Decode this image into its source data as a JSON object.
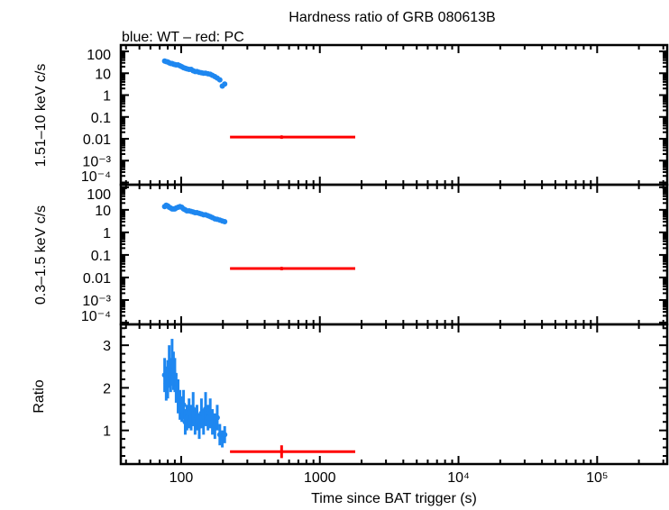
{
  "chart_data": {
    "type": "scatter",
    "title": "Hardness ratio of GRB 080613B",
    "subtitle": "blue: WT – red: PC",
    "xlabel": "Time since BAT trigger (s)",
    "x_scale": "log",
    "xlim": [
      36.7,
      320000
    ],
    "x_ticks": [
      {
        "v": 100,
        "label": "100"
      },
      {
        "v": 1000,
        "label": "1000"
      },
      {
        "v": 10000,
        "label": "10⁴"
      },
      {
        "v": 100000,
        "label": "10⁵"
      }
    ],
    "colors": {
      "WT": "#1e87f0",
      "PC": "#ff0000"
    },
    "panels": [
      {
        "id": "hard",
        "ylabel": "1.51–10 keV c/s",
        "y_scale": "log",
        "ylim": [
          7.9e-05,
          195
        ],
        "y_ticks": [
          {
            "v": 100,
            "label": "100"
          },
          {
            "v": 10,
            "label": "10"
          },
          {
            "v": 1,
            "label": "1"
          },
          {
            "v": 0.1,
            "label": "0.1"
          },
          {
            "v": 0.01,
            "label": "0.01"
          },
          {
            "v": 0.001,
            "label": "10⁻³"
          },
          {
            "v": 0.0001,
            "label": "10⁻⁴"
          }
        ],
        "series": [
          {
            "mode": "WT",
            "x": [
              76,
              78,
              80,
              82,
              84,
              86,
              88,
              90,
              92,
              95,
              98,
              101,
              104,
              107,
              110,
              114,
              118,
              122,
              126,
              130,
              135,
              140,
              145,
              150,
              156,
              162,
              168,
              175,
              182,
              190,
              198,
              206
            ],
            "y": [
              36,
              34,
              33,
              30,
              28,
              28,
              26,
              25,
              24,
              24,
              22,
              20,
              18,
              17,
              16,
              15,
              15,
              13,
              12,
              12,
              11,
              10.5,
              10,
              10,
              9.5,
              9,
              8,
              7,
              6,
              5,
              2.6,
              3.2
            ]
          },
          {
            "mode": "PC",
            "x": [
              530
            ],
            "xerr_lo": [
              225
            ],
            "xerr_hi": [
              1800
            ],
            "y": [
              0.012
            ],
            "yerr": [
              0.002
            ]
          }
        ]
      },
      {
        "id": "soft",
        "ylabel": "0.3–1.5 keV c/s",
        "y_scale": "log",
        "ylim": [
          8.3e-05,
          130
        ],
        "y_ticks": [
          {
            "v": 100,
            "label": "100"
          },
          {
            "v": 10,
            "label": "10"
          },
          {
            "v": 1,
            "label": "1"
          },
          {
            "v": 0.1,
            "label": "0.1"
          },
          {
            "v": 0.01,
            "label": "0.01"
          },
          {
            "v": 0.001,
            "label": "10⁻³"
          },
          {
            "v": 0.0001,
            "label": "10⁻⁴"
          }
        ],
        "series": [
          {
            "mode": "WT",
            "x": [
              76,
              78,
              80,
              82,
              84,
              86,
              88,
              90,
              92,
              95,
              98,
              101,
              104,
              107,
              110,
              114,
              118,
              122,
              126,
              130,
              135,
              140,
              145,
              150,
              156,
              162,
              168,
              175,
              182,
              190,
              198,
              206
            ],
            "y": [
              14,
              16,
              15,
              13,
              12,
              11,
              11,
              11,
              12,
              13,
              14,
              13,
              11,
              10,
              9,
              9,
              8.5,
              8,
              7.5,
              7.5,
              7,
              6.5,
              6,
              6,
              5.5,
              5,
              4.5,
              4,
              3.8,
              3.5,
              3.2,
              3.0
            ]
          },
          {
            "mode": "PC",
            "x": [
              530
            ],
            "xerr_lo": [
              225
            ],
            "xerr_hi": [
              1800
            ],
            "y": [
              0.025
            ],
            "yerr": [
              0.004
            ]
          }
        ]
      },
      {
        "id": "ratio",
        "ylabel": "Ratio",
        "y_scale": "linear",
        "ylim": [
          0.21,
          3.49
        ],
        "y_ticks": [
          {
            "v": 1,
            "label": "1"
          },
          {
            "v": 2,
            "label": "2"
          },
          {
            "v": 3,
            "label": "3"
          }
        ],
        "series": [
          {
            "mode": "WT",
            "x": [
              76,
              78,
              80,
              82,
              84,
              86,
              88,
              90,
              92,
              95,
              98,
              101,
              104,
              107,
              110,
              114,
              118,
              122,
              126,
              130,
              135,
              140,
              145,
              150,
              156,
              162,
              168,
              175,
              182,
              190,
              198,
              206
            ],
            "y": [
              2.3,
              2.1,
              2.2,
              2.5,
              2.3,
              2.6,
              2.4,
              2.3,
              2.0,
              1.8,
              1.6,
              1.5,
              1.6,
              1.2,
              1.3,
              1.4,
              1.3,
              1.5,
              1.2,
              1.3,
              1.1,
              1.4,
              1.2,
              1.5,
              1.3,
              1.4,
              1.2,
              1.1,
              1.3,
              0.9,
              0.8,
              0.9
            ],
            "yerr": [
              0.4,
              0.4,
              0.45,
              0.5,
              0.4,
              0.55,
              0.45,
              0.4,
              0.35,
              0.4,
              0.35,
              0.3,
              0.35,
              0.3,
              0.3,
              0.35,
              0.3,
              0.4,
              0.3,
              0.3,
              0.3,
              0.35,
              0.3,
              0.4,
              0.3,
              0.35,
              0.3,
              0.3,
              0.3,
              0.25,
              0.2,
              0.2
            ]
          },
          {
            "mode": "PC",
            "x": [
              530
            ],
            "xerr_lo": [
              225
            ],
            "xerr_hi": [
              1800
            ],
            "y": [
              0.5
            ],
            "yerr": [
              0.15
            ]
          }
        ]
      }
    ]
  }
}
